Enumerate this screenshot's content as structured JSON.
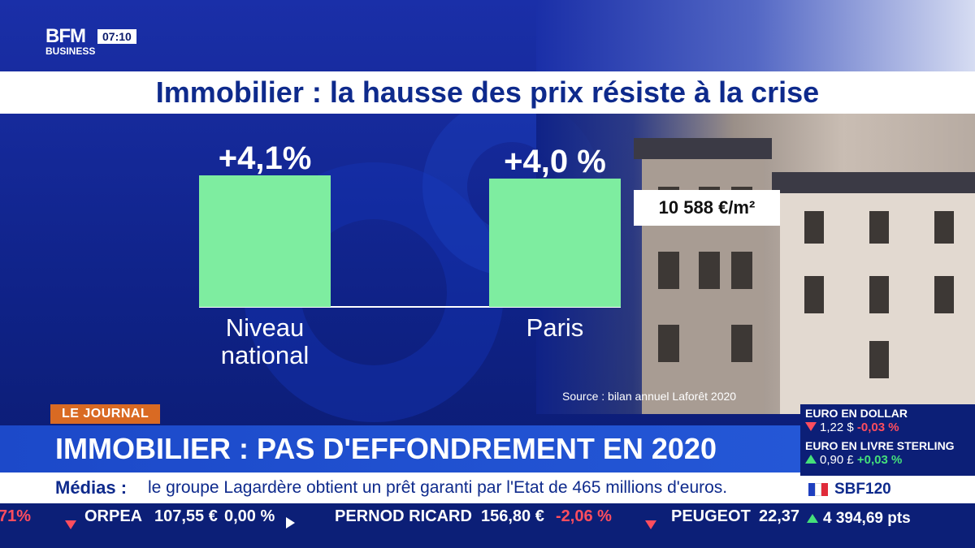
{
  "broadcast": {
    "logo_main": "BFM",
    "logo_sub": "BUSINESS",
    "clock": "07:10"
  },
  "chart_data": {
    "type": "bar",
    "title": "Immobilier : la hausse des prix résiste à la crise",
    "categories": [
      "Niveau national",
      "Paris"
    ],
    "category_lines": [
      [
        "Niveau",
        "national"
      ],
      [
        "Paris"
      ]
    ],
    "values": [
      4.1,
      4.0
    ],
    "value_labels": [
      "+4,1%",
      "+4,0 %"
    ],
    "ylim": [
      0,
      4.1
    ],
    "bar_color": "#7eeda0",
    "annotation": "10 588 €/m²",
    "source": "Source : bilan annuel Laforêt 2020"
  },
  "lower_third": {
    "tag": "LE JOURNAL",
    "headline": "IMMOBILIER : PAS D'EFFONDREMENT EN 2020",
    "ticker_label": "Médias :",
    "ticker_text": "le groupe Lagardère obtient un prêt garanti par l'Etat de 465 millions d'euros."
  },
  "stocks": [
    {
      "partial": "71%",
      "name": "ORPEA",
      "price": "107,55 €",
      "change": "0,00 %",
      "direction": "flat"
    },
    {
      "name": "PERNOD RICARD",
      "price": "156,80 €",
      "change": "-2,06 %",
      "direction": "down"
    },
    {
      "name": "PEUGEOT",
      "price": "22,37"
    }
  ],
  "side_panel": {
    "fx": [
      {
        "title": "EURO EN DOLLAR",
        "value": "1,22 $",
        "change": "-0,03 %",
        "direction": "down"
      },
      {
        "title": "EURO EN LIVRE STERLING",
        "value": "0,90 £",
        "change": "+0,03 %",
        "direction": "up"
      }
    ],
    "index_name": "SBF120",
    "index_value": "4 394,69 pts",
    "colors": {
      "up": "#45e07a",
      "down": "#ff4d5e"
    }
  }
}
